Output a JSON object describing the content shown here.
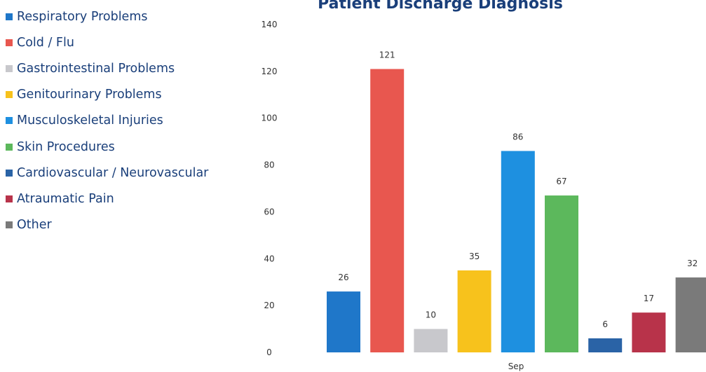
{
  "chart_data": {
    "type": "bar",
    "title": "Patient Discharge Diagnosis",
    "categories": [
      "Sep"
    ],
    "ylim": [
      0,
      140
    ],
    "yticks": [
      0,
      20,
      40,
      60,
      80,
      100,
      120,
      140
    ],
    "grid": false,
    "legend_position": "left",
    "series": [
      {
        "name": "Respiratory Problems",
        "values": [
          26
        ],
        "color": "#1f77c9"
      },
      {
        "name": "Cold / Flu",
        "values": [
          121
        ],
        "color": "#e8574f"
      },
      {
        "name": "Gastrointestinal Problems",
        "values": [
          10
        ],
        "color": "#c8c8cc"
      },
      {
        "name": "Genitourinary Problems",
        "values": [
          35
        ],
        "color": "#f7c21c"
      },
      {
        "name": "Musculoskeletal Injuries",
        "values": [
          86
        ],
        "color": "#1e90e0"
      },
      {
        "name": "Skin Procedures",
        "values": [
          67
        ],
        "color": "#5cb85c"
      },
      {
        "name": "Cardiovascular / Neurovascular",
        "values": [
          6
        ],
        "color": "#2a63a6"
      },
      {
        "name": "Atraumatic Pain",
        "values": [
          17
        ],
        "color": "#b8334a"
      },
      {
        "name": "Other",
        "values": [
          32
        ],
        "color": "#7a7a7a"
      }
    ]
  }
}
